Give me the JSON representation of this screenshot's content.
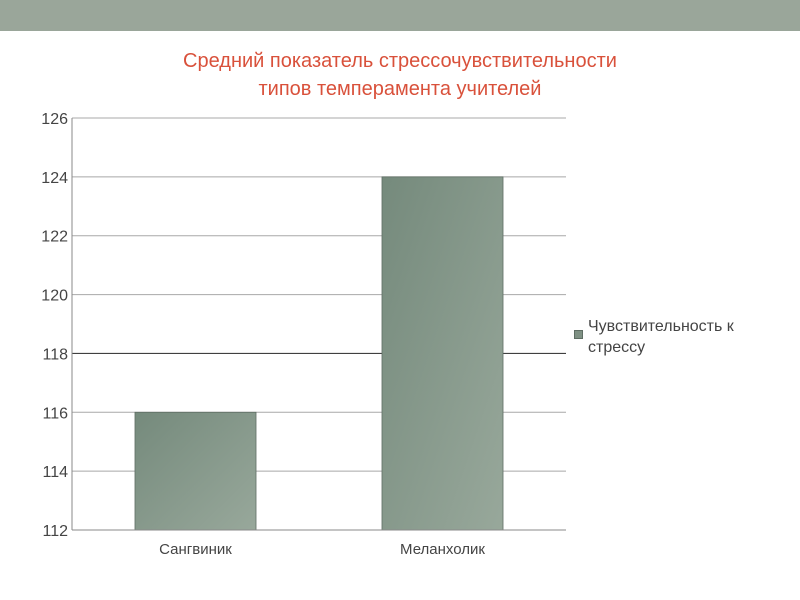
{
  "colors": {
    "top_bar": "#9aa69a",
    "title": "#d9513b",
    "bar_dark": "#758a7c",
    "bar_light": "#98a89b",
    "bar_edge": "#5f6e64",
    "grid": "#a8a8a8",
    "grid_bold": "#404040",
    "text": "#444444"
  },
  "chart_data": {
    "type": "bar",
    "title": [
      "Средний показатель стрессочувствительности",
      "типов темперамента учителей"
    ],
    "categories": [
      "Сангвиник",
      "Меланхолик"
    ],
    "series": [
      {
        "name": "Чувствительность к стрессу",
        "values": [
          116,
          124
        ]
      }
    ],
    "ylim": [
      112,
      126
    ],
    "yticks": [
      112,
      114,
      116,
      118,
      120,
      122,
      124,
      126
    ],
    "y_bold_line": 118,
    "grid": true,
    "legend": "right",
    "legend_label": [
      "Чувствительность к",
      "стрессу"
    ]
  }
}
